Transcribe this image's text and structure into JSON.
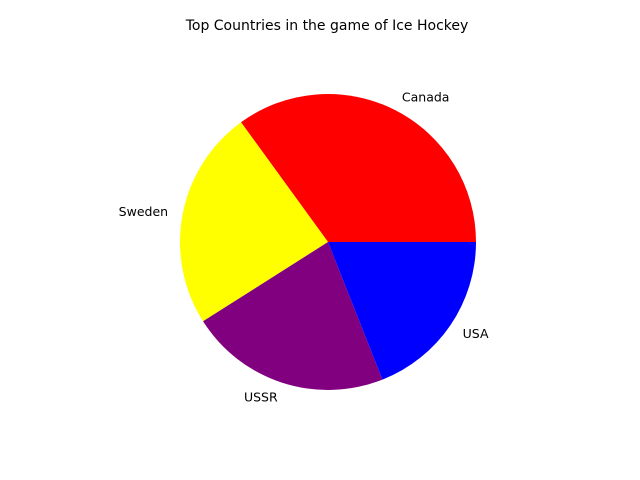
{
  "chart_data": {
    "type": "pie",
    "title": "Top Countries in the game of Ice Hockey",
    "categories": [
      "Canada",
      "Sweden",
      "USSR",
      "USA"
    ],
    "values": [
      35,
      24,
      22,
      19
    ],
    "colors": [
      "#ff0000",
      "#ffff00",
      "#800080",
      "#0000ff"
    ],
    "start_angle_deg": 0,
    "direction": "counterclockwise",
    "legend": false
  }
}
